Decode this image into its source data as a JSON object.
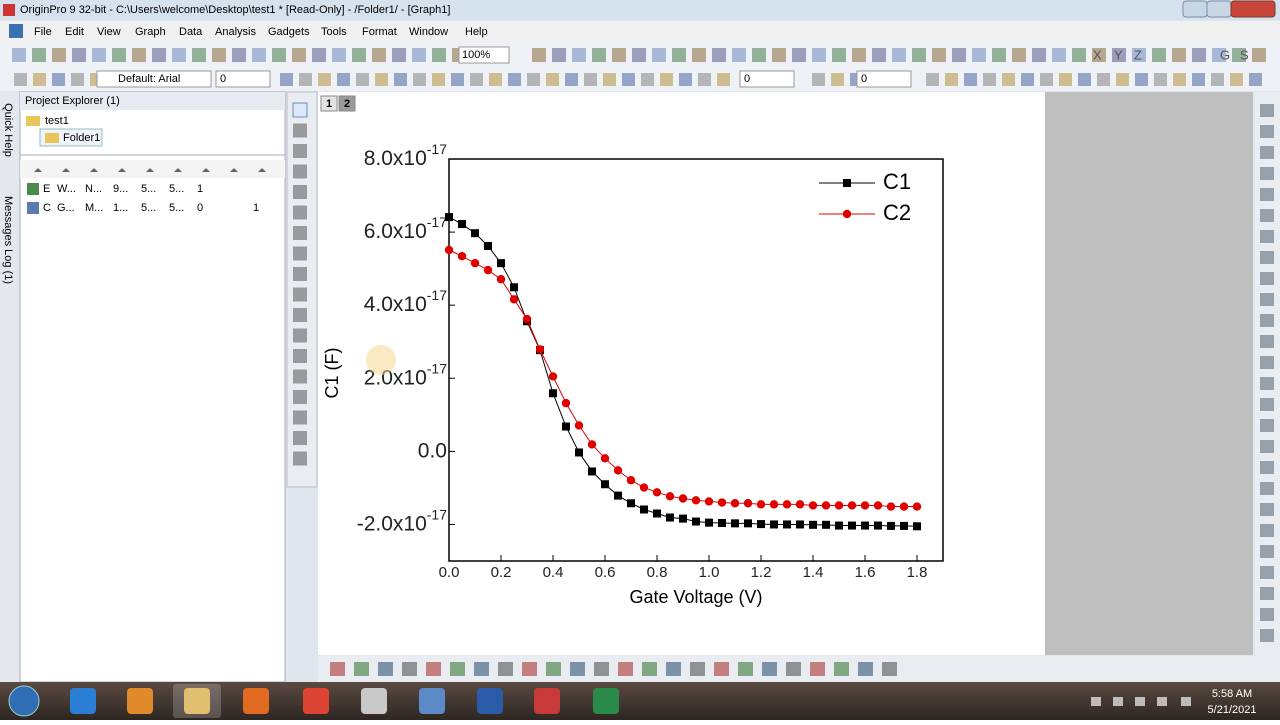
{
  "window": {
    "title": "OriginPro 9 32-bit - C:\\Users\\welcome\\Desktop\\test1 * [Read-Only] - /Folder1/ - [Graph1]"
  },
  "menu": [
    "File",
    "Edit",
    "View",
    "Graph",
    "Data",
    "Analysis",
    "Gadgets",
    "Tools",
    "Format",
    "Window",
    "Help"
  ],
  "toolbar": {
    "zoom": "100%",
    "font": "Default: Arial",
    "font_size": "0",
    "line_width": "0",
    "size": "0",
    "axis_letters": [
      "X",
      "Y",
      "Z"
    ],
    "right_letters": [
      "G",
      "S"
    ]
  },
  "side_tabs": [
    "Quick Help",
    "Messages Log (1)"
  ],
  "project_explorer": {
    "title": "Project Explorer (1)",
    "tree": [
      "test1",
      "Folder1"
    ],
    "rows": [
      [
        "E",
        "W...",
        "N...",
        "9...",
        "5...",
        "5...",
        "1"
      ],
      [
        "C",
        "G...",
        "M...",
        "1...",
        "5...",
        "5...",
        "0",
        "1"
      ]
    ]
  },
  "graph_tabs": [
    "1",
    "2"
  ],
  "chart_data": {
    "type": "line",
    "x": [
      0,
      0.05,
      0.1,
      0.15,
      0.2,
      0.25,
      0.3,
      0.35,
      0.4,
      0.45,
      0.5,
      0.55,
      0.6,
      0.65,
      0.7,
      0.75,
      0.8,
      0.85,
      0.9,
      0.95,
      1.0,
      1.05,
      1.1,
      1.15,
      1.2,
      1.25,
      1.3,
      1.35,
      1.4,
      1.45,
      1.5,
      1.55,
      1.6,
      1.65,
      1.7,
      1.75,
      1.8
    ],
    "series": [
      {
        "name": "C1",
        "color": "#000000",
        "marker": "square",
        "values": [
          6.41e-17,
          6.22e-17,
          5.97e-17,
          5.62e-17,
          5.15e-17,
          4.49e-17,
          3.56e-17,
          2.77e-17,
          1.59e-17,
          6.8e-18,
          -3e-19,
          -5.5e-18,
          -9e-18,
          -1.21e-17,
          -1.42e-17,
          -1.59e-17,
          -1.7e-17,
          -1.81e-17,
          -1.84e-17,
          -1.92e-17,
          -1.95e-17,
          -1.96e-17,
          -1.97e-17,
          -1.97e-17,
          -1.99e-17,
          -2e-17,
          -2e-17,
          -2e-17,
          -2.01e-17,
          -2.01e-17,
          -2.03e-17,
          -2.03e-17,
          -2.03e-17,
          -2.03e-17,
          -2.04e-17,
          -2.04e-17,
          -2.05e-17
        ]
      },
      {
        "name": "C2",
        "color": "#e00000",
        "marker": "circle",
        "values": [
          5.51e-17,
          5.34e-17,
          5.15e-17,
          4.96e-17,
          4.71e-17,
          4.16e-17,
          3.62e-17,
          2.79e-17,
          2.05e-17,
          1.32e-17,
          7.1e-18,
          1.9e-18,
          -1.9e-18,
          -5.2e-18,
          -7.9e-18,
          -9.9e-18,
          -1.12e-17,
          -1.23e-17,
          -1.29e-17,
          -1.34e-17,
          -1.37e-17,
          -1.4e-17,
          -1.42e-17,
          -1.42e-17,
          -1.45e-17,
          -1.45e-17,
          -1.45e-17,
          -1.45e-17,
          -1.48e-17,
          -1.48e-17,
          -1.48e-17,
          -1.48e-17,
          -1.48e-17,
          -1.48e-17,
          -1.51e-17,
          -1.51e-17,
          -1.51e-17
        ]
      }
    ],
    "x_label": "Gate Voltage (V)",
    "y_label": "C1 (F)",
    "xlim": [
      0,
      1.9
    ],
    "xticks": [
      {
        "value": 0,
        "label": "0.0"
      },
      0.2,
      0.4,
      0.6,
      0.8,
      {
        "value": 1,
        "label": "1.0"
      },
      1.2,
      1.4,
      1.6,
      1.8
    ],
    "ylim": [
      -3e-17,
      8e-17
    ],
    "yticks": [
      {
        "value": -2e-17,
        "label": "-2.0x10",
        "exponent": "-17"
      },
      {
        "value": 0,
        "label": "0.0"
      },
      {
        "value": 2e-17,
        "label": "2.0x10",
        "exponent": "-17"
      },
      {
        "value": 4e-17,
        "label": "4.0x10",
        "exponent": "-17"
      },
      {
        "value": 6e-17,
        "label": "6.0x10",
        "exponent": "-17"
      },
      {
        "value": 8e-17,
        "label": "8.0x10",
        "exponent": "-17"
      }
    ],
    "legend": "upper right",
    "grid": false
  },
  "taskbar": {
    "time": "5:58 AM",
    "date": "5/21/2021"
  }
}
